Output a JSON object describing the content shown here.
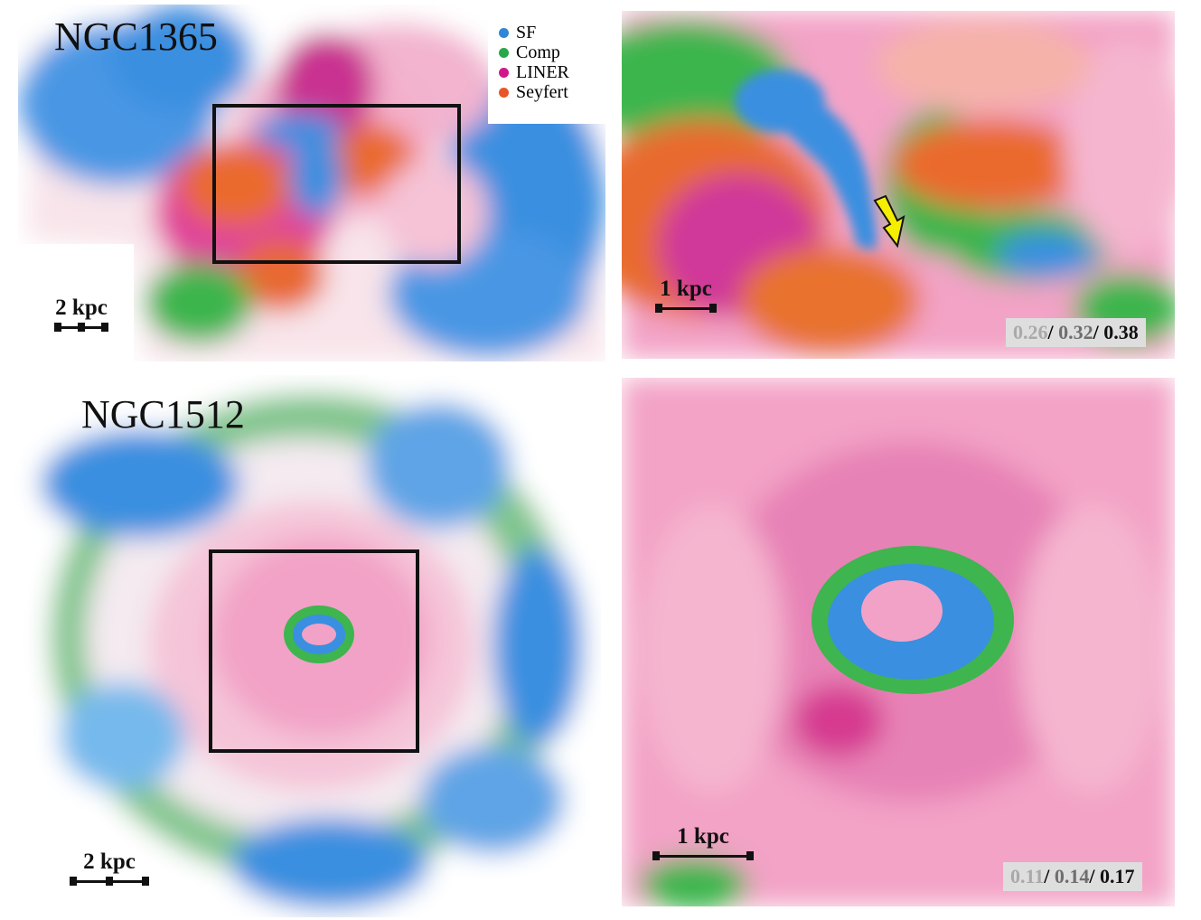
{
  "panels": {
    "ngc1365_full": {
      "title": "NGC1365",
      "scale": "2 kpc"
    },
    "ngc1365_zoom": {
      "scale": "1 kpc",
      "levels": [
        "0.26",
        "0.32",
        "0.38"
      ]
    },
    "ngc1512_full": {
      "title": "NGC1512",
      "scale": "2 kpc"
    },
    "ngc1512_zoom": {
      "scale": "1 kpc",
      "levels": [
        "0.11",
        "0.14",
        "0.17"
      ]
    }
  },
  "legend": [
    {
      "label": "SF",
      "color": "#2f86d6"
    },
    {
      "label": "Comp",
      "color": "#2aa64b"
    },
    {
      "label": "LINER",
      "color": "#d0188c"
    },
    {
      "label": "Seyfert",
      "color": "#e8552a"
    }
  ],
  "colors": {
    "SF": "#3a8fe0",
    "Comp": "#3eb54e",
    "LINER": "#e0449a",
    "LINER_light": "#f3a0c6",
    "Seyfert": "#ea6a2e",
    "Seyfert_light": "#f4a56f",
    "arrow": "#f6ee00",
    "levels_box": "#dedede"
  },
  "arrow_icon": "yellow-arrow-icon"
}
